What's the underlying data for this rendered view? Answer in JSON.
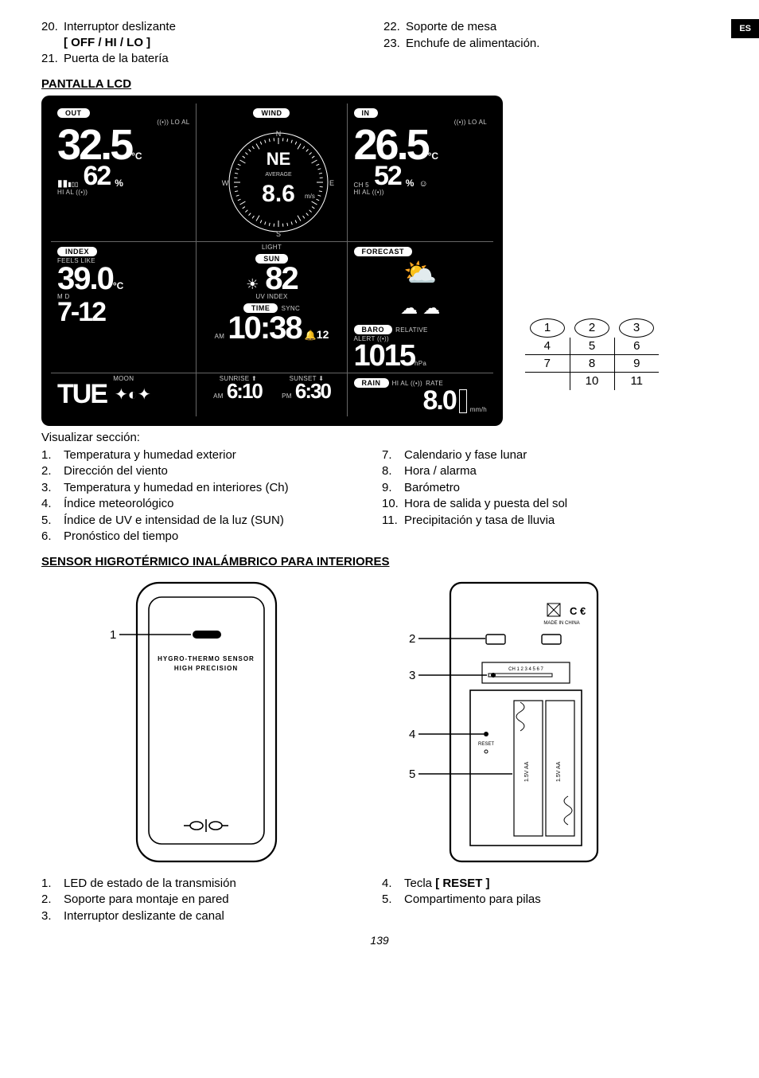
{
  "lang_tab": "ES",
  "top_items_left": [
    {
      "n": "20.",
      "text": "Interruptor deslizante",
      "bold": "[ OFF / HI / LO ]"
    },
    {
      "n": "21.",
      "text": "Puerta de la batería"
    }
  ],
  "top_items_right": [
    {
      "n": "22.",
      "text": "Soporte de mesa"
    },
    {
      "n": "23.",
      "text": "Enchufe de alimentación."
    }
  ],
  "sec1_title": "PANTALLA LCD",
  "lcd": {
    "out_label": "OUT",
    "wind_label": "WIND",
    "in_label": "IN",
    "lo_al": "((•)) LO AL",
    "out_temp": "32.5",
    "temp_unit": "°C",
    "out_hum": "62",
    "hum_unit": "%",
    "hi_al": "HI AL ((•))",
    "wind_dir": "NE",
    "n": "N",
    "s": "S",
    "w": "W",
    "e": "E",
    "avg": "AVERAGE",
    "wind_speed": "8.6",
    "wind_unit": "m/s",
    "in_temp": "26.5",
    "in_hum": "52",
    "ch": "CH 5",
    "index_label": "INDEX",
    "light_label": "LIGHT",
    "forecast_label": "FORECAST",
    "feels": "FEELS LIKE",
    "feels_val": "39.0",
    "sun_label": "SUN",
    "uv": "UV INDEX",
    "uv_val": "82",
    "hi_al_plain": "HI AL ((•))",
    "time_label": "TIME",
    "sync": "SYNC",
    "time_val": "10:38",
    "time_sec": "12",
    "am": "AM",
    "md": "M    D",
    "date": "7-12",
    "baro_label": "BARO",
    "rel": "RELATIVE",
    "alert": "ALERT ((•))",
    "baro_val": "1015",
    "baro_unit": "hPa",
    "moon": "MOON",
    "dow": "TUE",
    "sunrise": "SUNRISE",
    "sunset": "SUNSET",
    "sr_val": "6:10",
    "ss_val": "6:30",
    "pm": "PM",
    "rain_label": "RAIN",
    "rate": "RATE",
    "rain_val": "8.0",
    "rain_unit": "mm/h"
  },
  "grid": {
    "r1": [
      "1",
      "2",
      "3"
    ],
    "r2": [
      "4",
      "5",
      "6"
    ],
    "r3": [
      "7",
      "8",
      "9"
    ],
    "r4": [
      "",
      "10",
      "11"
    ]
  },
  "vis_title": "Visualizar sección:",
  "vis_left": [
    {
      "n": "1.",
      "t": "Temperatura y humedad exterior"
    },
    {
      "n": "2.",
      "t": "Dirección del viento"
    },
    {
      "n": "3.",
      "t": "Temperatura y humedad en interiores (Ch)"
    },
    {
      "n": "4.",
      "t": "Índice meteorológico"
    },
    {
      "n": "5.",
      "t": "Índice de UV e intensidad de la luz (SUN)"
    },
    {
      "n": "6.",
      "t": "Pronóstico del tiempo"
    }
  ],
  "vis_right": [
    {
      "n": "7.",
      "t": "Calendario y fase lunar"
    },
    {
      "n": "8.",
      "t": "Hora / alarma"
    },
    {
      "n": "9.",
      "t": "Barómetro"
    },
    {
      "n": "10.",
      "t": "Hora de salida y puesta del sol"
    },
    {
      "n": "11.",
      "t": "Precipitación y tasa de lluvia"
    }
  ],
  "sec2_title": "SENSOR HIGROTÉRMICO INALÁMBRICO PARA INTERIORES",
  "sensor_front": {
    "label1": "1",
    "text1": "HYGRO-THERMO SENSOR",
    "text2": "HIGH PRECISION"
  },
  "sensor_back": {
    "labels": [
      "2",
      "3",
      "4",
      "5"
    ],
    "ce": "C €",
    "made": "MADE IN CHINA",
    "ch": "CH 1 2 3 4 5 6 7",
    "reset": "RESET",
    "batt": "1.5V AA"
  },
  "sensor_list_left": [
    {
      "n": "1.",
      "t": "LED de estado de la transmisión"
    },
    {
      "n": "2.",
      "t": "Soporte para montaje en pared"
    },
    {
      "n": "3.",
      "t": "Interruptor deslizante de canal"
    }
  ],
  "sensor_list_right": [
    {
      "n": "4.",
      "t": "Tecla ",
      "b": "[ RESET ]"
    },
    {
      "n": "5.",
      "t": "Compartimento para pilas"
    }
  ],
  "page_num": "139"
}
